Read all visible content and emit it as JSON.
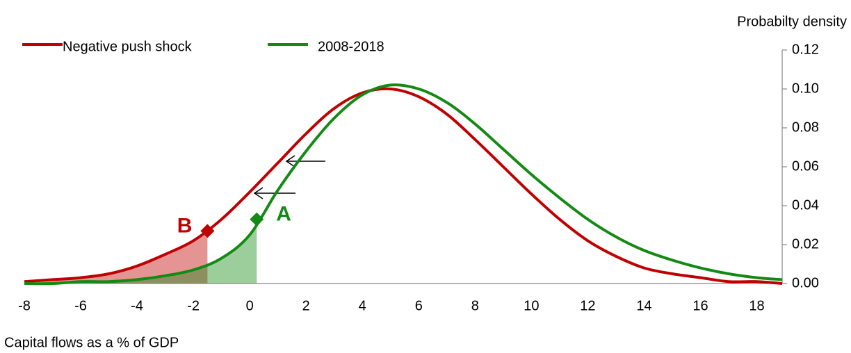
{
  "chart_data": {
    "type": "line",
    "y_axis_label": "Probabilty density",
    "x_axis_label": "Capital flows as a % of GDP",
    "x": [
      -8,
      -7,
      -6,
      -5,
      -4,
      -3,
      -2,
      -1,
      0,
      1,
      2,
      3,
      4,
      5,
      6,
      7,
      8,
      9,
      10,
      11,
      12,
      13,
      14,
      15,
      16,
      17,
      18,
      18.9
    ],
    "series": [
      {
        "name": "Negative push shock",
        "color": "#c00000",
        "values": [
          0.001,
          0.002,
          0.003,
          0.005,
          0.009,
          0.015,
          0.022,
          0.033,
          0.047,
          0.062,
          0.077,
          0.09,
          0.098,
          0.1,
          0.096,
          0.087,
          0.074,
          0.06,
          0.046,
          0.033,
          0.022,
          0.014,
          0.008,
          0.005,
          0.003,
          0.001,
          0.001,
          0.0
        ]
      },
      {
        "name": "2008-2018",
        "color": "#138a13",
        "values": [
          0.0,
          0.0,
          0.001,
          0.001,
          0.002,
          0.004,
          0.007,
          0.013,
          0.025,
          0.048,
          0.068,
          0.085,
          0.097,
          0.102,
          0.1,
          0.093,
          0.082,
          0.069,
          0.056,
          0.044,
          0.033,
          0.024,
          0.017,
          0.012,
          0.008,
          0.005,
          0.003,
          0.002
        ]
      }
    ],
    "markers": [
      {
        "label": "B",
        "x": -1.5,
        "y": 0.027,
        "color": "#c00000"
      },
      {
        "label": "A",
        "x": 0.25,
        "y": 0.033,
        "color": "#138a13"
      }
    ],
    "xlim": [
      -8,
      18.9
    ],
    "xticks": [
      -8,
      -6,
      -4,
      -2,
      0,
      2,
      4,
      6,
      8,
      10,
      12,
      14,
      16,
      18
    ],
    "ylim": [
      0,
      0.12
    ],
    "yticks": [
      {
        "value": 0,
        "label": "0.00"
      },
      {
        "value": 0.02,
        "label": "0.02"
      },
      {
        "value": 0.04,
        "label": "0.04"
      },
      {
        "value": 0.06,
        "label": "0.06"
      },
      {
        "value": 0.08,
        "label": "0.08"
      },
      {
        "value": 0.1,
        "label": "0.10"
      },
      {
        "value": 0.12,
        "label": "0.12"
      }
    ],
    "legend": "top-left"
  }
}
